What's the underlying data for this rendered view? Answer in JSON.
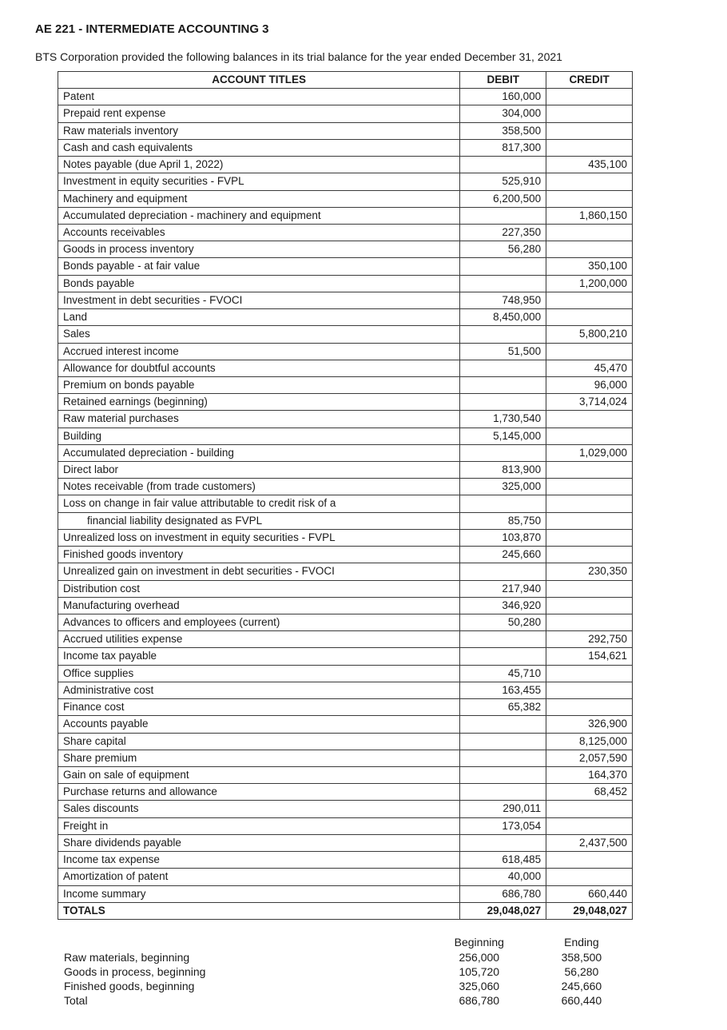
{
  "course_title": "AE 221 - INTERMEDIATE ACCOUNTING 3",
  "intro": "BTS Corporation provided the following balances in its trial balance for the year ended December 31, 2021",
  "headers": {
    "account": "ACCOUNT TITLES",
    "debit": "DEBIT",
    "credit": "CREDIT"
  },
  "rows": [
    {
      "title": "Patent",
      "debit": "160,000",
      "credit": ""
    },
    {
      "title": "Prepaid rent expense",
      "debit": "304,000",
      "credit": ""
    },
    {
      "title": "Raw materials inventory",
      "debit": "358,500",
      "credit": ""
    },
    {
      "title": "Cash and cash equivalents",
      "debit": "817,300",
      "credit": ""
    },
    {
      "title": "Notes payable (due April 1, 2022)",
      "debit": "",
      "credit": "435,100"
    },
    {
      "title": "Investment in equity securities - FVPL",
      "debit": "525,910",
      "credit": ""
    },
    {
      "title": "Machinery and equipment",
      "debit": "6,200,500",
      "credit": ""
    },
    {
      "title": "Accumulated depreciation - machinery and equipment",
      "debit": "",
      "credit": "1,860,150"
    },
    {
      "title": "Accounts receivables",
      "debit": "227,350",
      "credit": ""
    },
    {
      "title": "Goods in process inventory",
      "debit": "56,280",
      "credit": ""
    },
    {
      "title": "Bonds payable - at fair value",
      "debit": "",
      "credit": "350,100"
    },
    {
      "title": "Bonds payable",
      "debit": "",
      "credit": "1,200,000"
    },
    {
      "title": "Investment in debt securities - FVOCI",
      "debit": "748,950",
      "credit": ""
    },
    {
      "title": "Land",
      "debit": "8,450,000",
      "credit": ""
    },
    {
      "title": "Sales",
      "debit": "",
      "credit": "5,800,210"
    },
    {
      "title": "Accrued interest income",
      "debit": "51,500",
      "credit": ""
    },
    {
      "title": "Allowance for doubtful accounts",
      "debit": "",
      "credit": "45,470"
    },
    {
      "title": "Premium on bonds payable",
      "debit": "",
      "credit": "96,000"
    },
    {
      "title": "Retained earnings (beginning)",
      "debit": "",
      "credit": "3,714,024"
    },
    {
      "title": "Raw material purchases",
      "debit": "1,730,540",
      "credit": ""
    },
    {
      "title": "Building",
      "debit": "5,145,000",
      "credit": ""
    },
    {
      "title": "Accumulated depreciation - building",
      "debit": "",
      "credit": "1,029,000"
    },
    {
      "title": "Direct labor",
      "debit": "813,900",
      "credit": ""
    },
    {
      "title": "Notes receivable (from trade customers)",
      "debit": "325,000",
      "credit": ""
    },
    {
      "title": "Loss on change in fair value attributable to credit risk of a",
      "debit": "",
      "credit": ""
    },
    {
      "title": "financial liability designated as FVPL",
      "indent": true,
      "debit": "85,750",
      "credit": ""
    },
    {
      "title": "Unrealized loss on investment in equity securities - FVPL",
      "debit": "103,870",
      "credit": ""
    },
    {
      "title": "Finished goods inventory",
      "debit": "245,660",
      "credit": ""
    },
    {
      "title": "Unrealized gain on investment in debt securities - FVOCI",
      "debit": "",
      "credit": "230,350"
    },
    {
      "title": "Distribution cost",
      "debit": "217,940",
      "credit": ""
    },
    {
      "title": "Manufacturing overhead",
      "debit": "346,920",
      "credit": ""
    },
    {
      "title": "Advances to officers and employees (current)",
      "debit": "50,280",
      "credit": ""
    },
    {
      "title": "Accrued utilities expense",
      "debit": "",
      "credit": "292,750"
    },
    {
      "title": "Income tax payable",
      "debit": "",
      "credit": "154,621"
    },
    {
      "title": "Office supplies",
      "debit": "45,710",
      "credit": ""
    },
    {
      "title": "Administrative cost",
      "debit": "163,455",
      "credit": ""
    },
    {
      "title": "Finance cost",
      "debit": "65,382",
      "credit": ""
    },
    {
      "title": "Accounts payable",
      "debit": "",
      "credit": "326,900"
    },
    {
      "title": "Share capital",
      "debit": "",
      "credit": "8,125,000"
    },
    {
      "title": "Share premium",
      "debit": "",
      "credit": "2,057,590"
    },
    {
      "title": "Gain on sale of equipment",
      "debit": "",
      "credit": "164,370"
    },
    {
      "title": "Purchase returns and allowance",
      "debit": "",
      "credit": "68,452"
    },
    {
      "title": "Sales discounts",
      "debit": "290,011",
      "credit": ""
    },
    {
      "title": "Freight in",
      "debit": "173,054",
      "credit": ""
    },
    {
      "title": "Share dividends payable",
      "debit": "",
      "credit": "2,437,500"
    },
    {
      "title": "Income tax expense",
      "debit": "618,485",
      "credit": ""
    },
    {
      "title": "Amortization of patent",
      "debit": "40,000",
      "credit": ""
    },
    {
      "title": "Income summary",
      "debit": "686,780",
      "credit": "660,440"
    }
  ],
  "totals": {
    "title": "TOTALS",
    "debit": "29,048,027",
    "credit": "29,048,027"
  },
  "summary": {
    "headers": {
      "beginning": "Beginning",
      "ending": "Ending"
    },
    "rows": [
      {
        "label": "Raw materials, beginning",
        "beginning": "256,000",
        "ending": "358,500"
      },
      {
        "label": "Goods in process, beginning",
        "beginning": "105,720",
        "ending": "56,280"
      },
      {
        "label": "Finished goods, beginning",
        "beginning": "325,060",
        "ending": "245,660"
      },
      {
        "label": "Total",
        "beginning": "686,780",
        "ending": "660,440"
      }
    ]
  }
}
